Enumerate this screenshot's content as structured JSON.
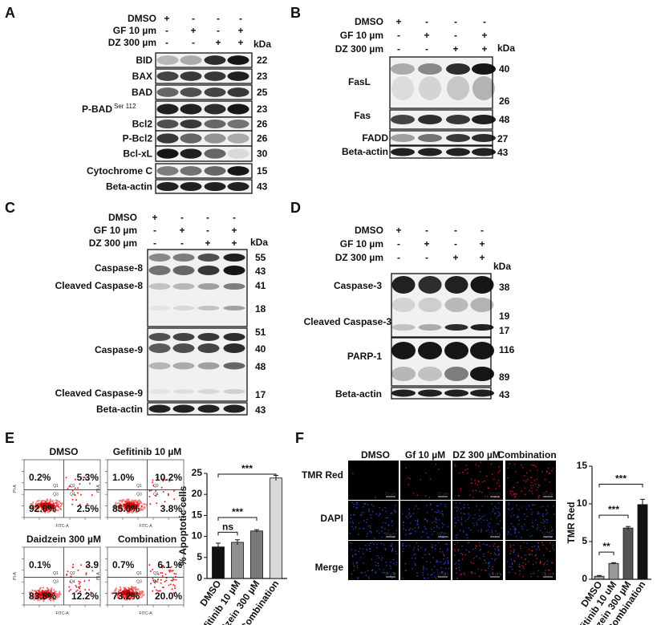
{
  "panels": {
    "A": {
      "label": "A",
      "treatments": [
        {
          "name": "DMSO",
          "marks": [
            "+",
            "-",
            "-",
            "-"
          ]
        },
        {
          "name": "GF 10 µm",
          "marks": [
            "-",
            "+",
            "-",
            "+"
          ]
        },
        {
          "name": "DZ 300 µm",
          "marks": [
            "-",
            "-",
            "+",
            "+"
          ]
        }
      ],
      "kda_label": "kDa",
      "proteins": [
        {
          "name": "BID",
          "kda": "22"
        },
        {
          "name": "BAX",
          "kda": "23"
        },
        {
          "name": "BAD",
          "kda": "25"
        },
        {
          "name": "P-BAD",
          "superscript": "Ser 112",
          "kda": "23"
        },
        {
          "name": "Bcl2",
          "kda": "26"
        },
        {
          "name": "P-Bcl2",
          "kda": "26"
        },
        {
          "name": "Bcl-xL",
          "kda": "30"
        },
        {
          "name": "Cytochrome C",
          "kda": "15"
        },
        {
          "name": "Beta-actin",
          "kda": "43"
        }
      ]
    },
    "B": {
      "label": "B",
      "treatments": [
        {
          "name": "DMSO",
          "marks": [
            "+",
            "-",
            "-",
            "-"
          ]
        },
        {
          "name": "GF 10 µm",
          "marks": [
            "-",
            "+",
            "-",
            "+"
          ]
        },
        {
          "name": "DZ 300 µm",
          "marks": [
            "-",
            "-",
            "+",
            "+"
          ]
        }
      ],
      "kda_label": "kDa",
      "proteins": [
        "FasL",
        "Fas",
        "FADD",
        "Beta-actin"
      ],
      "markers": [
        "40",
        "26",
        "48",
        "27",
        "43"
      ]
    },
    "C": {
      "label": "C",
      "treatments": [
        {
          "name": "DMSO",
          "marks": [
            "+",
            "-",
            "-",
            "-"
          ]
        },
        {
          "name": "GF 10 µm",
          "marks": [
            "-",
            "+",
            "-",
            "+"
          ]
        },
        {
          "name": "DZ 300 µm",
          "marks": [
            "-",
            "-",
            "+",
            "+"
          ]
        }
      ],
      "kda_label": "kDa",
      "proteins": [
        "Caspase-8",
        "Cleaved Caspase-8",
        "Caspase-9",
        "Cleaved Caspase-9",
        "Beta-actin"
      ],
      "markers": [
        "55",
        "43",
        "41",
        "18",
        "51",
        "40",
        "48",
        "17",
        "43"
      ]
    },
    "D": {
      "label": "D",
      "treatments": [
        {
          "name": "DMSO",
          "marks": [
            "+",
            "-",
            "-",
            "-"
          ]
        },
        {
          "name": "GF 10 µm",
          "marks": [
            "-",
            "+",
            "-",
            "+"
          ]
        },
        {
          "name": "DZ 300 µm",
          "marks": [
            "-",
            "-",
            "+",
            "+"
          ]
        }
      ],
      "kda_label": "kDa",
      "proteins": [
        "Caspase-3",
        "Cleaved Caspase-3",
        "PARP-1",
        "Beta-actin"
      ],
      "markers": [
        "38",
        "19",
        "17",
        "116",
        "89",
        "43"
      ]
    },
    "E": {
      "label": "E",
      "facs": [
        {
          "title": "DMSO",
          "ul": "0.2%",
          "ur": "5.3%",
          "ll": "92.0%",
          "lr": "2.5%"
        },
        {
          "title": "Gefitinib  10 µM",
          "ul": "1.0%",
          "ur": "10.2%",
          "ll": "85.0%",
          "lr": "3.8%"
        },
        {
          "title": "Daidzein 300 µM",
          "ul": "0.1%",
          "ur": "3.9",
          "ll": "83.8%",
          "lr": "12.2%"
        },
        {
          "title": "Combination",
          "ul": "0.7%",
          "ur": "6.1 %",
          "ll": "73.2%",
          "lr": "20.0%"
        }
      ],
      "quadrant_labels": [
        "Q1",
        "Q2",
        "Q3",
        "Q4"
      ],
      "axis_x": "FITC-A",
      "axis_y": "PI-A",
      "sig": [
        "ns",
        "***",
        "***"
      ]
    },
    "F": {
      "label": "F",
      "columns": [
        "DMSO",
        "Gf 10 µM",
        "DZ 300 µM",
        "Combination"
      ],
      "rows": [
        "TMR Red",
        "DAPI",
        "Merge"
      ],
      "scale_bar": "50 µm",
      "sig": [
        "**",
        "***",
        "***"
      ]
    }
  },
  "chart_data": [
    {
      "type": "bar",
      "categories": [
        "DMSO",
        "Gefitinib 10 µM",
        "Daidzein 300 µM",
        "Combination"
      ],
      "values": [
        7.5,
        8.6,
        11.3,
        23.9
      ],
      "errors": [
        0.9,
        0.6,
        0.3,
        0.6
      ],
      "colors": [
        "#111111",
        "#8f8f8f",
        "#7a7a7a",
        "#d9d9d9"
      ],
      "ylabel": "% Apoptotic cells",
      "ylim": [
        0,
        25
      ],
      "yticks": [
        0,
        5,
        10,
        15,
        20,
        25
      ]
    },
    {
      "type": "bar",
      "categories": [
        "DMSO",
        "Gefitinib 10 uM",
        "Daidzein 300 µM",
        "Combination"
      ],
      "values": [
        0.4,
        2.1,
        6.8,
        9.9
      ],
      "errors": [
        0.1,
        0.1,
        0.2,
        0.7
      ],
      "colors": [
        "#999999",
        "#999999",
        "#555555",
        "#111111"
      ],
      "ylabel": "TMR Red",
      "ylim": [
        0,
        15
      ],
      "yticks": [
        0,
        5,
        10,
        15
      ]
    }
  ]
}
